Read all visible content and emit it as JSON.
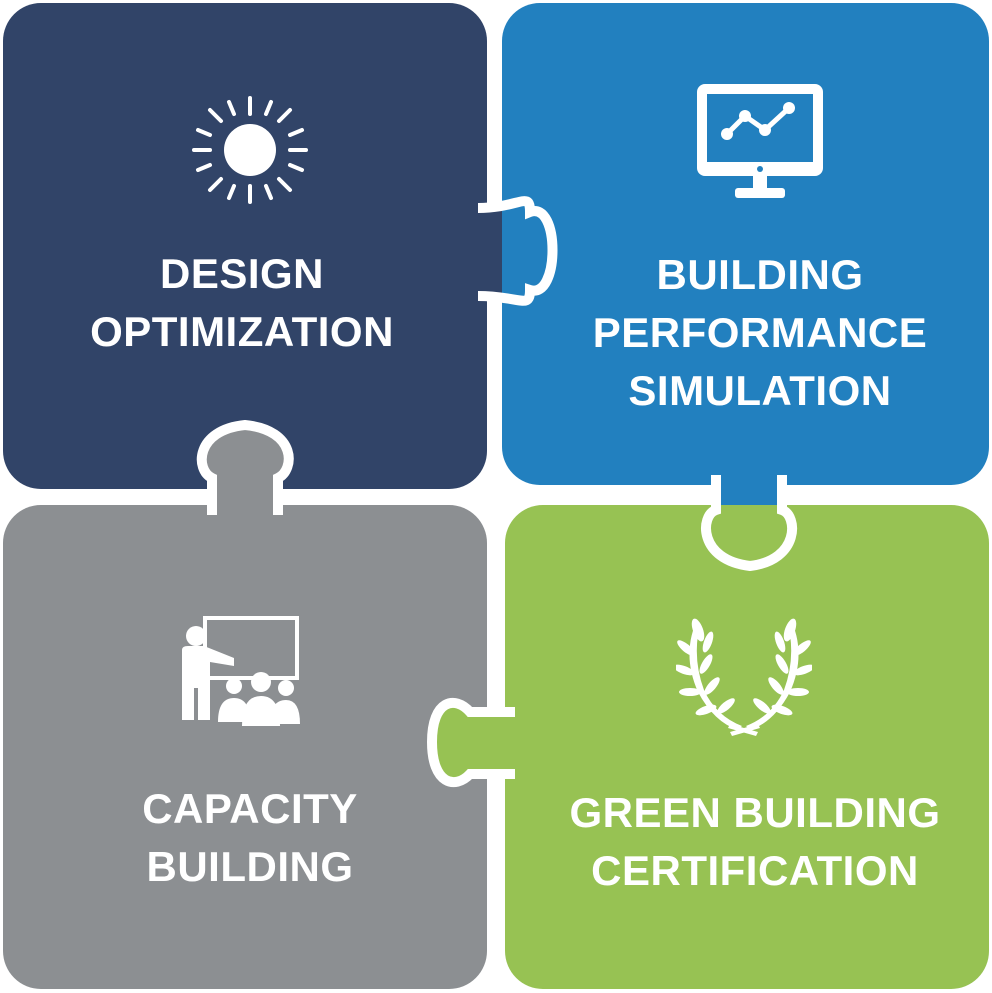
{
  "pieces": [
    {
      "id": "design",
      "color": "#314468",
      "icon": "sun-icon",
      "lines": [
        "DESIGN",
        "OPTIMIZATION"
      ]
    },
    {
      "id": "simulation",
      "color": "#2280BF",
      "icon": "monitor-chart-icon",
      "lines": [
        "BUILDING",
        "PERFORMANCE",
        "SIMULATION"
      ]
    },
    {
      "id": "capacity",
      "color": "#8C8F92",
      "icon": "presentation-icon",
      "lines": [
        "CAPACITY",
        "BUILDING"
      ]
    },
    {
      "id": "certification",
      "color": "#97C253",
      "icon": "laurel-wreath-icon",
      "lines": [
        "GREEN BUILDING",
        "CERTIFICATION"
      ]
    }
  ]
}
